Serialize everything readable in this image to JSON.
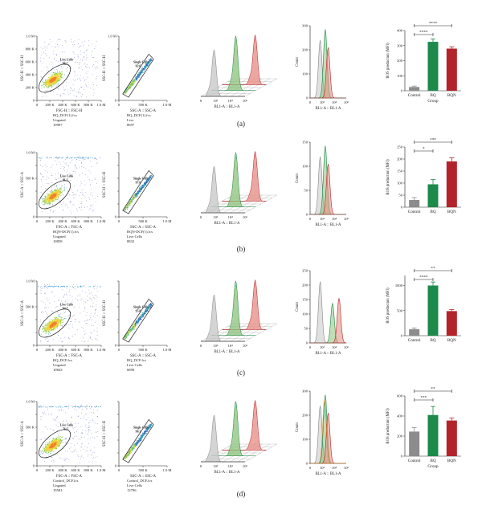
{
  "colors": {
    "gray": "#8c8c8c",
    "green": "#1c8a4a",
    "red": "#b3242a",
    "hist_gray": "#c6c6c6",
    "hist_green": "#8bc27a",
    "hist_red": "#e58a82",
    "overlay_orange": "#c98a2b",
    "density": [
      "#3b47a8",
      "#2f8fd0",
      "#33b6a0",
      "#8ccf3e",
      "#f0d23a",
      "#f0832a"
    ]
  },
  "rows": [
    {
      "letter": "(a)",
      "scatter1": {
        "y_title": "SSC-H :: SSC-H",
        "x_title": "FSC-H :: FSC-H",
        "y_ticks": [
          "1.0 M",
          "800 K",
          "600 K",
          "400 K",
          "200 K",
          "0"
        ],
        "x_ticks": [
          "0",
          "200 K",
          "400 K",
          "600 K",
          "800 K",
          "1.0 M"
        ],
        "gate_name": "Live Cells",
        "gate_pct": "86.7",
        "info": [
          "BQ_DCF(1).fcs",
          "Ungated",
          "10987"
        ]
      },
      "scatter2": {
        "y_title": "SSC-H :: SSC-H",
        "x_title": "SSC-A :: SSC-A",
        "y_ticks": [
          "1.0 M",
          "",
          "",
          "",
          "",
          "0"
        ],
        "x_ticks": [
          "0",
          "500 K",
          "1.0 M"
        ],
        "gate_name": "Single Cells",
        "gate_pct": "92.6",
        "info": [
          "BQ_DCF(1).fcs",
          "Live",
          "8697"
        ]
      },
      "stack_x_title": "BL1-A :: BL1-A",
      "stack_x_ticks": [
        "0",
        "10²",
        "10⁴",
        "10⁶"
      ],
      "overlay": {
        "y_title": "Count",
        "y_ticks": [
          "300",
          "200",
          "100",
          "0"
        ],
        "x_title": "BL1-A :: BL1-A",
        "x_ticks": [
          "0",
          "10²",
          "10⁴",
          "10⁶"
        ],
        "orange": false
      },
      "bar": {
        "y_title": "ROS production (MFI)",
        "x_title": "Group",
        "y_ticks": [
          "400",
          "300",
          "200",
          "100",
          "0"
        ],
        "ymax": 400,
        "categories": [
          "Control",
          "BQ",
          "BQN"
        ],
        "values": [
          25,
          325,
          280
        ],
        "errors": [
          6,
          18,
          12
        ],
        "sig": [
          {
            "from": 0,
            "to": 1,
            "label": "****"
          },
          {
            "from": 0,
            "to": 2,
            "label": "****"
          }
        ]
      }
    },
    {
      "letter": "(b)",
      "scatter1": {
        "y_title": "SSC-A :: SSC-A",
        "x_title": "FSC-A :: FSC-A",
        "y_ticks": [
          "1.0 M",
          "",
          "500 K",
          "",
          "",
          "0"
        ],
        "x_ticks": [
          "0",
          "200 K",
          "400 K",
          "600 K",
          "800 K",
          "1.0 M"
        ],
        "gate_name": "Live Cells",
        "gate_pct": "81.5",
        "info": [
          "BQN-DCF(1).fcs",
          "Ungated",
          "10858"
        ]
      },
      "scatter2": {
        "y_title": "SSC-H :: SSC-H",
        "x_title": "SSC-A :: SSC-A",
        "y_ticks": [
          "",
          "",
          "",
          "",
          "",
          "0"
        ],
        "x_ticks": [
          "0",
          "500 K",
          "1.0 M"
        ],
        "gate_name": "Single Cells",
        "gate_pct": "97.6",
        "info": [
          "BQN-DCF(1).fcs",
          "Live Cells",
          "8832"
        ]
      },
      "stack_x_title": "BL1-A :: BL1-A",
      "stack_x_ticks": [
        "0",
        "10²",
        "10⁴",
        "10⁶"
      ],
      "overlay": {
        "y_title": "Count",
        "y_ticks": [
          "150",
          "100",
          "50",
          "0"
        ],
        "x_title": "BL1-A :: BL1-A",
        "x_ticks": [
          "0",
          "10²",
          "10⁴",
          "10⁶"
        ],
        "orange": false
      },
      "bar": {
        "y_title": "ROS production (MFI)",
        "x_title": "",
        "y_ticks": [
          "250",
          "200",
          "150",
          "100",
          "50",
          "0"
        ],
        "ymax": 250,
        "categories": [
          "Control",
          "BQ",
          "BQN"
        ],
        "values": [
          30,
          95,
          190
        ],
        "errors": [
          10,
          20,
          15
        ],
        "sig": [
          {
            "from": 0,
            "to": 1,
            "label": "*"
          },
          {
            "from": 0,
            "to": 2,
            "label": "***"
          }
        ]
      }
    },
    {
      "letter": "(c)",
      "scatter1": {
        "y_title": "SSC-A :: SSC-A",
        "x_title": "FSC-A :: FSC-A",
        "y_ticks": [
          "1.0 M",
          "",
          "500 K",
          "",
          "",
          "0"
        ],
        "x_ticks": [
          "0",
          "200 K",
          "400 K",
          "600 K",
          "800 K",
          "1.0 M"
        ],
        "gate_name": "Live Cells",
        "gate_pct": "84.7",
        "info": [
          "BQ_DCF.fcs",
          "Ungated",
          "10843"
        ]
      },
      "scatter2": {
        "y_title": "SSC-H :: SSC-H",
        "x_title": "SSC-A :: SSC-A",
        "y_ticks": [
          "",
          "",
          "",
          "",
          "",
          "0"
        ],
        "x_ticks": [
          "0",
          "500 K",
          "1.0 M"
        ],
        "gate_name": "Single Cells",
        "gate_pct": "95.8",
        "info": [
          "BQ_DCF.fcs",
          "Live Cells",
          "6890"
        ]
      },
      "stack_x_title": "BL1-A :: BL1-A",
      "stack_x_ticks": [
        "0",
        "10²",
        "10⁴",
        "10⁶"
      ],
      "overlay": {
        "y_title": "Count",
        "y_ticks": [
          "250",
          "200",
          "150",
          "100",
          "50",
          "0"
        ],
        "x_title": "BL1-A :: BL1-A",
        "x_ticks": [
          "0",
          "10²",
          "10⁴",
          "10⁶"
        ],
        "orange": false
      },
      "bar": {
        "y_title": "ROS production (MFI)",
        "x_title": "",
        "y_ticks": [
          "1000",
          "500",
          "0"
        ],
        "ymax": 1200,
        "categories": [
          "Control",
          "BQ",
          "BQN"
        ],
        "values": [
          130,
          1000,
          490
        ],
        "errors": [
          25,
          70,
          30
        ],
        "sig": [
          {
            "from": 0,
            "to": 1,
            "label": "****"
          },
          {
            "from": 0,
            "to": 2,
            "label": "**"
          }
        ]
      }
    },
    {
      "letter": "(d)",
      "scatter1": {
        "y_title": "SSC-A :: SSC-A",
        "x_title": "FSC-A :: FSC-A",
        "y_ticks": [
          "1.0 M",
          "",
          "500 K",
          "",
          "",
          "0"
        ],
        "x_ticks": [
          "0",
          "200 K",
          "400 K",
          "600 K",
          "800 K",
          "1.0 M"
        ],
        "gate_name": "Live Cells",
        "gate_pct": "76.5",
        "info": [
          "Control_DCF.fcs",
          "Ungated",
          "19581"
        ]
      },
      "scatter2": {
        "y_title": "SSC-H :: SSC-H",
        "x_title": "SSC-A :: SSC-A",
        "y_ticks": [
          "",
          "",
          "",
          "",
          "",
          "0"
        ],
        "x_ticks": [
          "0",
          "500 K",
          "1.0 M"
        ],
        "gate_name": "Single Cells",
        "gate_pct": "96.3",
        "info": [
          "Control_DCF.fcs",
          "Live Cells",
          "13796"
        ]
      },
      "stack_x_title": "BL1-A :: BL1-A",
      "stack_x_ticks": [
        "0",
        "10²",
        "10⁴",
        "10⁶"
      ],
      "overlay": {
        "y_title": "Count",
        "y_ticks": [
          "300",
          "200",
          "100",
          "0"
        ],
        "x_title": "BL1-A :: BL1-A",
        "x_ticks": [
          "0",
          "10²",
          "10⁴",
          "10⁶"
        ],
        "orange": true
      },
      "bar": {
        "y_title": "ROS production (MFI)",
        "x_title": "Group",
        "y_ticks": [
          "600",
          "400",
          "200",
          "0"
        ],
        "ymax": 600,
        "categories": [
          "Control",
          "BQ",
          "BQN"
        ],
        "values": [
          245,
          410,
          355
        ],
        "errors": [
          40,
          85,
          25
        ],
        "sig": [
          {
            "from": 0,
            "to": 1,
            "label": "***"
          },
          {
            "from": 0,
            "to": 2,
            "label": "**"
          }
        ]
      }
    }
  ]
}
